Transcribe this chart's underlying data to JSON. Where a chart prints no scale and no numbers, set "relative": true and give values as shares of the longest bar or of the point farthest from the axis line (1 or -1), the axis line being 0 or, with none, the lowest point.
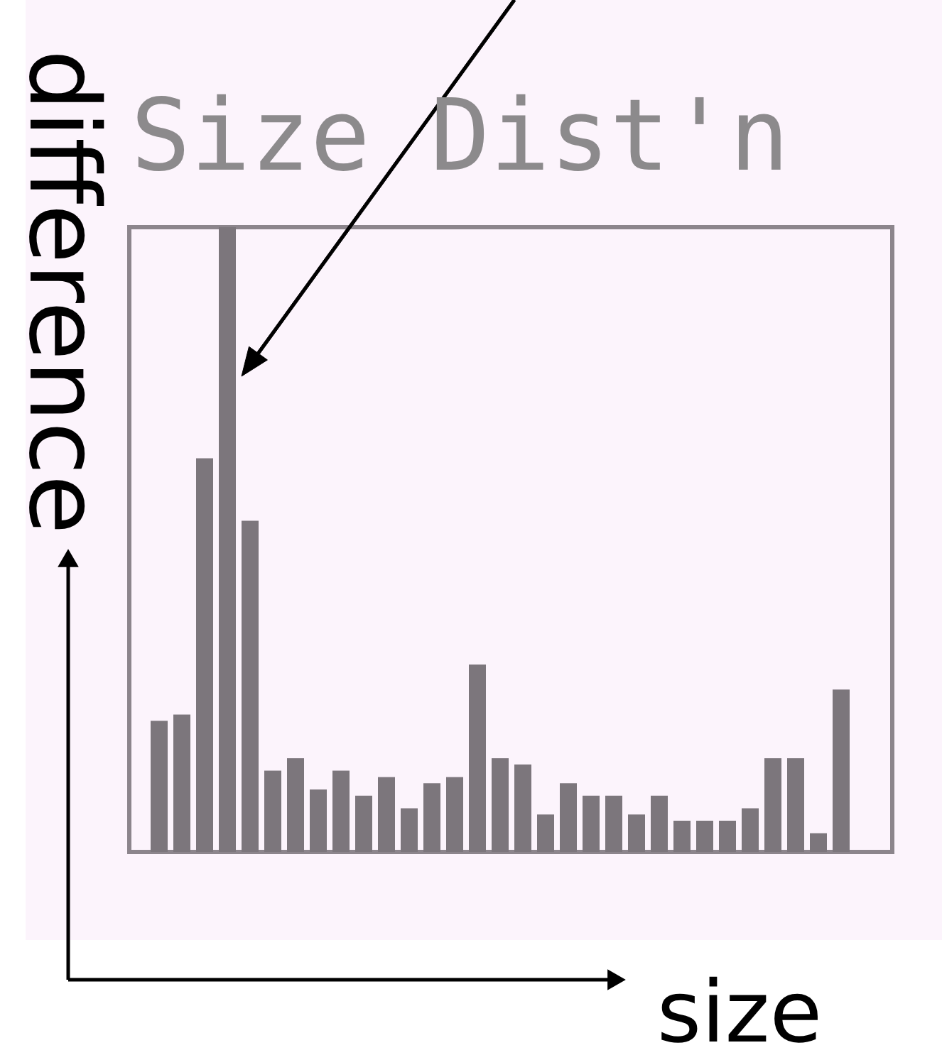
{
  "chart_data": {
    "type": "bar",
    "title": "Size Dist'n",
    "xlabel": "size",
    "ylabel": "difference",
    "categories": [
      null,
      null,
      null,
      null,
      null,
      null,
      null,
      null,
      null,
      null,
      null,
      null,
      null,
      null,
      null,
      null,
      null,
      null,
      null,
      null,
      null,
      null,
      null,
      null,
      null,
      null,
      null,
      null,
      null,
      null,
      null
    ],
    "values": [
      0.21,
      0.22,
      0.63,
      1,
      0.53,
      0.13,
      0.15,
      0.1,
      0.13,
      0.09,
      0.12,
      0.07,
      0.11,
      0.12,
      0.3,
      0.15,
      0.14,
      0.06,
      0.11,
      0.09,
      0.09,
      0.06,
      0.09,
      0.05,
      0.05,
      0.05,
      0.07,
      0.15,
      0.15,
      0.03,
      0.26
    ],
    "color": "#7c767c",
    "relative": true
  }
}
